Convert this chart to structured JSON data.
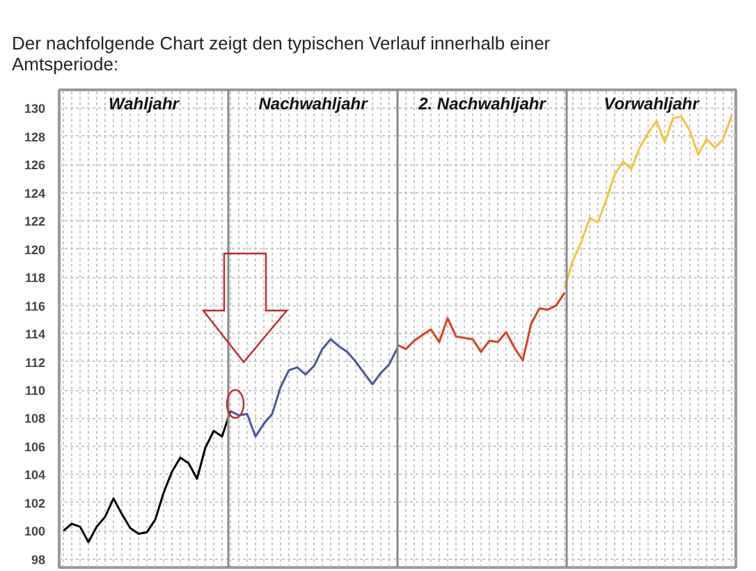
{
  "chart_data": {
    "type": "line",
    "title": "Der nachfolgende Chart zeigt den typischen Verlauf innerhalb einer Amtsperiode:",
    "annotations": [
      "Wahljahr",
      "Nachwahljahr",
      "2. Nachwahljahr",
      "Vorwahljahr"
    ],
    "categories": [
      null,
      null,
      null,
      null,
      null,
      null,
      null,
      null,
      null,
      null,
      null,
      null,
      null,
      null,
      null,
      null,
      null,
      null,
      null,
      null,
      null,
      null,
      null,
      null,
      null,
      null,
      null,
      null,
      null,
      null,
      null,
      null,
      null,
      null,
      null,
      null,
      null,
      null,
      null,
      null,
      null,
      null,
      null,
      null,
      null,
      null,
      null,
      null,
      null,
      null,
      null,
      null,
      null,
      null,
      null,
      null,
      null,
      null,
      null,
      null,
      null,
      null,
      null,
      null,
      null,
      null,
      null,
      null,
      null,
      null,
      null,
      null,
      null,
      null,
      null,
      null,
      null,
      null,
      null,
      null,
      null
    ],
    "ylim": [
      97.4,
      131.3
    ],
    "yticks": [
      98,
      100,
      102,
      104,
      106,
      108,
      110,
      112,
      114,
      116,
      118,
      120,
      122,
      124,
      126,
      128,
      130
    ],
    "tick_labels": "y",
    "grid": true,
    "line_style": "solid",
    "series": [
      {
        "color": "#000000",
        "values": [
          100.0,
          100.5,
          100.3,
          99.2,
          100.3,
          101.0,
          102.3,
          101.2,
          100.2,
          99.8,
          99.9,
          100.8,
          102.7,
          104.2,
          105.2,
          104.8,
          103.7,
          105.9,
          107.1,
          106.7,
          108.5,
          null,
          null,
          null,
          null,
          null,
          null,
          null,
          null,
          null,
          null,
          null,
          null,
          null,
          null,
          null,
          null,
          null,
          null,
          null,
          null,
          null,
          null,
          null,
          null,
          null,
          null,
          null,
          null,
          null,
          null,
          null,
          null,
          null,
          null,
          null,
          null,
          null,
          null,
          null,
          null,
          null,
          null,
          null,
          null,
          null,
          null,
          null,
          null,
          null,
          null,
          null,
          null,
          null,
          null,
          null,
          null,
          null,
          null,
          null,
          null
        ]
      },
      {
        "color": "#4a55a2",
        "values": [
          null,
          null,
          null,
          null,
          null,
          null,
          null,
          null,
          null,
          null,
          null,
          null,
          null,
          null,
          null,
          null,
          null,
          null,
          null,
          null,
          108.5,
          108.2,
          108.3,
          106.7,
          107.6,
          108.3,
          110.2,
          111.4,
          111.6,
          111.1,
          111.7,
          112.9,
          113.6,
          113.1,
          112.7,
          112.0,
          111.2,
          110.4,
          111.2,
          111.8,
          113.0,
          null,
          null,
          null,
          null,
          null,
          null,
          null,
          null,
          null,
          null,
          null,
          null,
          null,
          null,
          null,
          null,
          null,
          null,
          null,
          null,
          null,
          null,
          null,
          null,
          null,
          null,
          null,
          null,
          null,
          null,
          null,
          null,
          null,
          null,
          null,
          null,
          null,
          null,
          null,
          null
        ]
      },
      {
        "color": "#d9401e",
        "values": [
          null,
          null,
          null,
          null,
          null,
          null,
          null,
          null,
          null,
          null,
          null,
          null,
          null,
          null,
          null,
          null,
          null,
          null,
          null,
          null,
          null,
          null,
          null,
          null,
          null,
          null,
          null,
          null,
          null,
          null,
          null,
          null,
          null,
          null,
          null,
          null,
          null,
          null,
          null,
          null,
          113.2,
          112.9,
          113.5,
          113.9,
          114.3,
          113.4,
          115.1,
          113.8,
          113.7,
          113.6,
          112.7,
          113.5,
          113.4,
          114.1,
          113.0,
          112.1,
          114.7,
          115.8,
          115.7,
          116.0,
          116.9,
          null,
          null,
          null,
          null,
          null,
          null,
          null,
          null,
          null,
          null,
          null,
          null,
          null,
          null,
          null,
          null,
          null,
          null,
          null,
          null
        ]
      },
      {
        "color": "#f5c33b",
        "values": [
          null,
          null,
          null,
          null,
          null,
          null,
          null,
          null,
          null,
          null,
          null,
          null,
          null,
          null,
          null,
          null,
          null,
          null,
          null,
          null,
          null,
          null,
          null,
          null,
          null,
          null,
          null,
          null,
          null,
          null,
          null,
          null,
          null,
          null,
          null,
          null,
          null,
          null,
          null,
          null,
          null,
          null,
          null,
          null,
          null,
          null,
          null,
          null,
          null,
          null,
          null,
          null,
          null,
          null,
          null,
          null,
          null,
          null,
          null,
          null,
          117.2,
          119.2,
          120.5,
          122.2,
          121.9,
          123.5,
          125.3,
          126.2,
          125.7,
          127.2,
          128.2,
          129.1,
          127.6,
          129.3,
          129.4,
          128.4,
          126.7,
          127.8,
          127.2,
          127.8,
          129.5
        ]
      }
    ]
  }
}
